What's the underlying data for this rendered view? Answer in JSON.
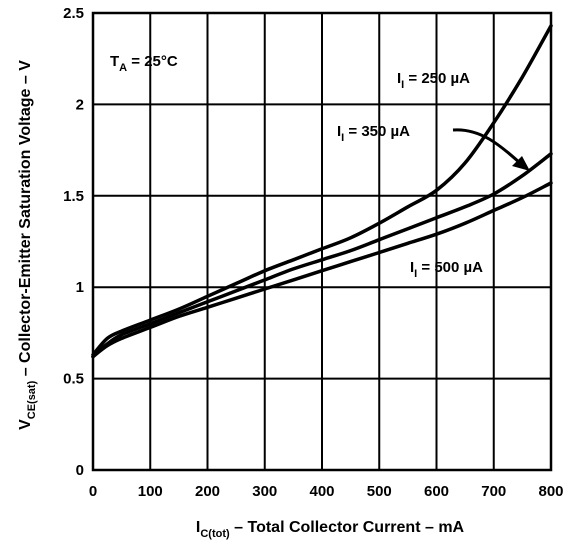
{
  "chart_data": {
    "type": "line",
    "x_label": {
      "main": "I",
      "sub": "C(tot)",
      "rest": " – Total Collector Current – mA"
    },
    "y_label": {
      "main": "V",
      "sub": "CE(sat)",
      "rest": " – Collector-Emitter Saturation Voltage – V"
    },
    "xlim": [
      0,
      800
    ],
    "ylim": [
      0,
      2.5
    ],
    "x_ticks": [
      0,
      100,
      200,
      300,
      400,
      500,
      600,
      700,
      800
    ],
    "y_ticks": [
      0,
      0.5,
      1,
      1.5,
      2,
      2.5
    ],
    "y_tick_labels": [
      "0",
      "0.5",
      "1",
      "1.5",
      "2",
      "2.5"
    ],
    "grid": true,
    "condition": {
      "main": "T",
      "sub": "A",
      "rest": " = 25°C"
    },
    "series": [
      {
        "name": "250 µA",
        "label_prefix": "I",
        "label_sub": "I",
        "label_rest": " = 250 µA",
        "x": [
          0,
          25,
          50,
          100,
          150,
          200,
          250,
          300,
          350,
          400,
          450,
          500,
          550,
          600,
          650,
          700,
          750,
          800
        ],
        "y": [
          0.63,
          0.72,
          0.76,
          0.82,
          0.88,
          0.95,
          1.02,
          1.09,
          1.15,
          1.21,
          1.27,
          1.35,
          1.44,
          1.53,
          1.68,
          1.9,
          2.15,
          2.43
        ]
      },
      {
        "name": "350 µA",
        "label_prefix": "I",
        "label_sub": "I",
        "label_rest": " = 350 µA",
        "x": [
          0,
          25,
          50,
          100,
          150,
          200,
          250,
          300,
          350,
          400,
          450,
          500,
          550,
          600,
          650,
          700,
          750,
          800
        ],
        "y": [
          0.62,
          0.69,
          0.74,
          0.8,
          0.86,
          0.92,
          0.98,
          1.04,
          1.1,
          1.15,
          1.2,
          1.26,
          1.32,
          1.38,
          1.44,
          1.51,
          1.61,
          1.73
        ]
      },
      {
        "name": "500 µA",
        "label_prefix": "I",
        "label_sub": "I",
        "label_rest": " = 500 µA",
        "x": [
          0,
          25,
          50,
          100,
          150,
          200,
          250,
          300,
          350,
          400,
          450,
          500,
          550,
          600,
          650,
          700,
          750,
          800
        ],
        "y": [
          0.62,
          0.68,
          0.72,
          0.78,
          0.84,
          0.89,
          0.94,
          0.99,
          1.04,
          1.09,
          1.14,
          1.19,
          1.24,
          1.29,
          1.35,
          1.42,
          1.49,
          1.57
        ]
      }
    ]
  }
}
